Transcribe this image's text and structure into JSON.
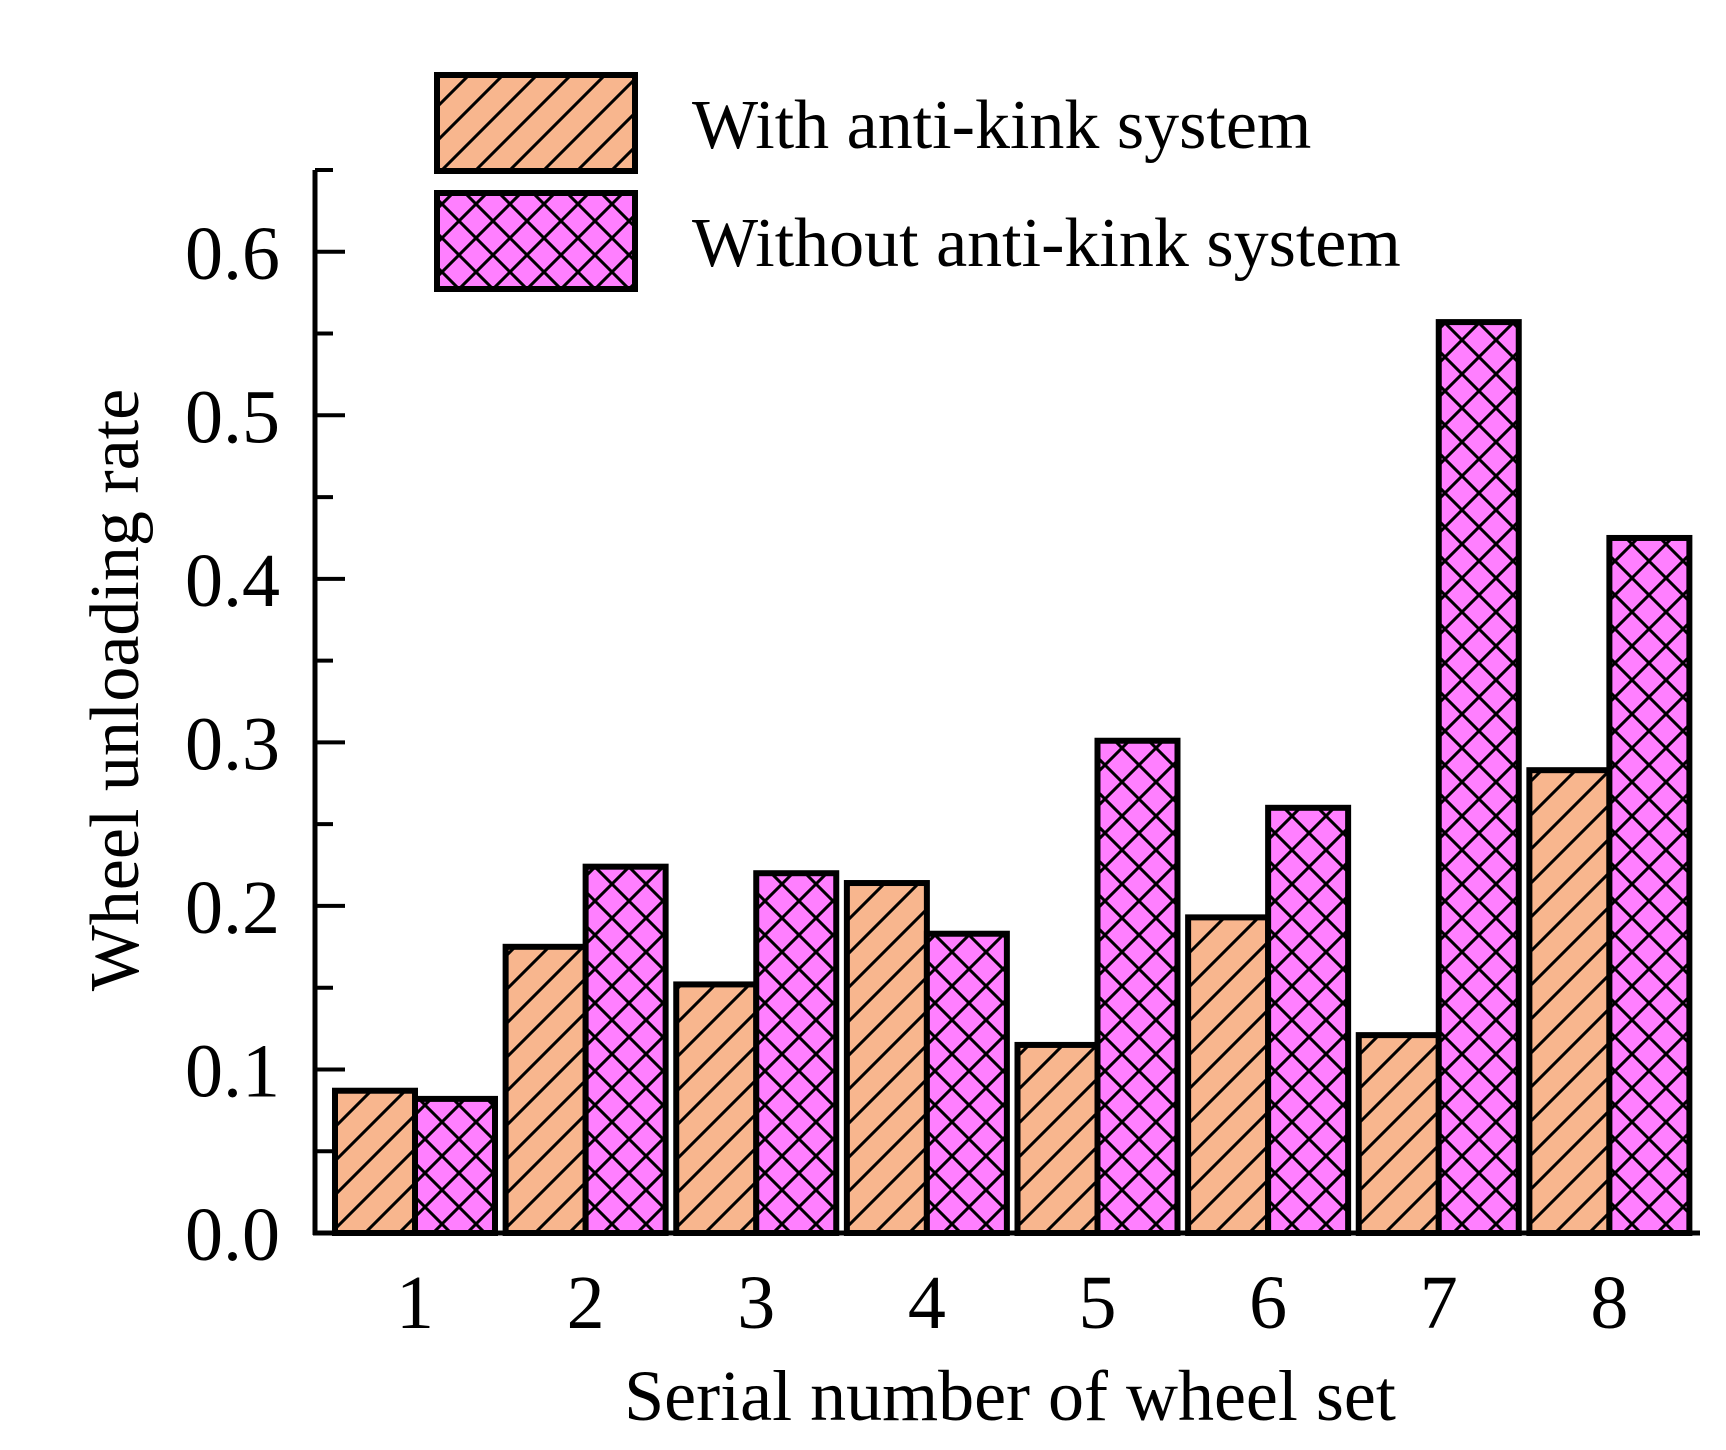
{
  "chart_data": {
    "type": "bar",
    "title": "",
    "xlabel": "Serial number of wheel set",
    "ylabel": "Wheel unloading rate",
    "categories": [
      "1",
      "2",
      "3",
      "4",
      "5",
      "6",
      "7",
      "8"
    ],
    "ylim": [
      0,
      0.65
    ],
    "yticks": [
      "0.0",
      "0.1",
      "0.2",
      "0.3",
      "0.4",
      "0.5",
      "0.6"
    ],
    "grid": false,
    "legend_position": "top",
    "series": [
      {
        "name": "With anti-kink system",
        "color": "#F8B68E",
        "pattern": "diagonal-hatch",
        "values": [
          0.087,
          0.175,
          0.152,
          0.214,
          0.115,
          0.193,
          0.121,
          0.283
        ]
      },
      {
        "name": "Without anti-kink system",
        "color": "#FF7FFF",
        "pattern": "cross-hatch",
        "values": [
          0.082,
          0.224,
          0.22,
          0.183,
          0.301,
          0.26,
          0.557,
          0.425
        ]
      }
    ]
  }
}
